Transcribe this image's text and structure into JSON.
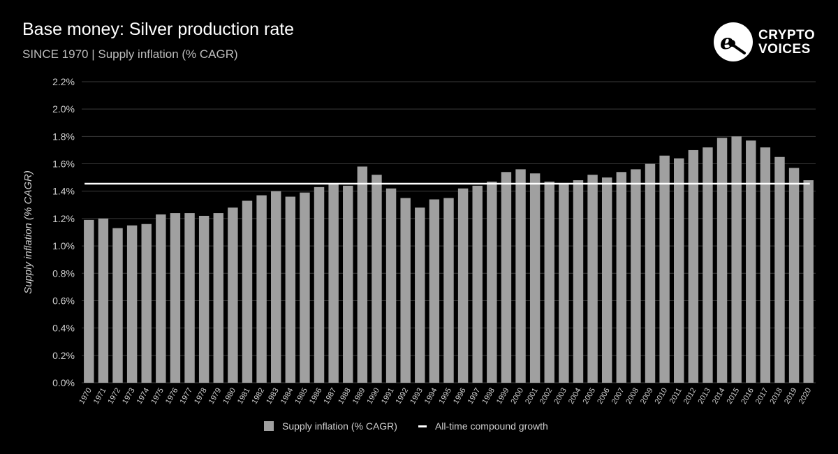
{
  "header": {
    "title": "Base money: Silver production rate",
    "subtitle": "SINCE 1970 | Supply inflation (% CAGR)"
  },
  "logo": {
    "line1": "CRYPTO",
    "line2": "VOICES",
    "icon": "crypto-voices-logo-icon"
  },
  "colors": {
    "background": "#000000",
    "bar": "#a0a0a0",
    "reference_line": "#ffffff",
    "grid": "#3a3a3a",
    "text": "#cfcfcf"
  },
  "chart_data": {
    "type": "bar",
    "title": "Base money: Silver production rate",
    "subtitle": "SINCE 1970 | Supply inflation (% CAGR)",
    "xlabel": "",
    "ylabel": "Supply inflation (% CAGR)",
    "ylim": [
      0,
      2.2
    ],
    "ytick_step": 0.2,
    "ytick_format": "percent_1dp",
    "grid": true,
    "legend_position": "bottom",
    "categories": [
      "1970",
      "1971",
      "1972",
      "1973",
      "1974",
      "1975",
      "1976",
      "1977",
      "1978",
      "1979",
      "1980",
      "1981",
      "1982",
      "1983",
      "1984",
      "1985",
      "1986",
      "1987",
      "1988",
      "1989",
      "1990",
      "1991",
      "1992",
      "1993",
      "1994",
      "1995",
      "1996",
      "1997",
      "1998",
      "1999",
      "2000",
      "2001",
      "2002",
      "2003",
      "2004",
      "2005",
      "2006",
      "2007",
      "2008",
      "2009",
      "2010",
      "2011",
      "2012",
      "2013",
      "2014",
      "2015",
      "2016",
      "2017",
      "2018",
      "2019",
      "2020"
    ],
    "series": [
      {
        "name": "Supply inflation (% CAGR)",
        "type": "bar",
        "values": [
          1.19,
          1.2,
          1.13,
          1.15,
          1.16,
          1.23,
          1.24,
          1.24,
          1.22,
          1.24,
          1.28,
          1.33,
          1.37,
          1.4,
          1.36,
          1.39,
          1.43,
          1.45,
          1.44,
          1.58,
          1.52,
          1.42,
          1.35,
          1.28,
          1.34,
          1.35,
          1.42,
          1.44,
          1.47,
          1.54,
          1.56,
          1.53,
          1.47,
          1.46,
          1.48,
          1.52,
          1.5,
          1.54,
          1.56,
          1.6,
          1.66,
          1.64,
          1.7,
          1.72,
          1.79,
          1.8,
          1.77,
          1.72,
          1.65,
          1.57,
          1.48
        ]
      },
      {
        "name": "All-time compound growth",
        "type": "reference_line",
        "value": 1.455
      }
    ]
  }
}
